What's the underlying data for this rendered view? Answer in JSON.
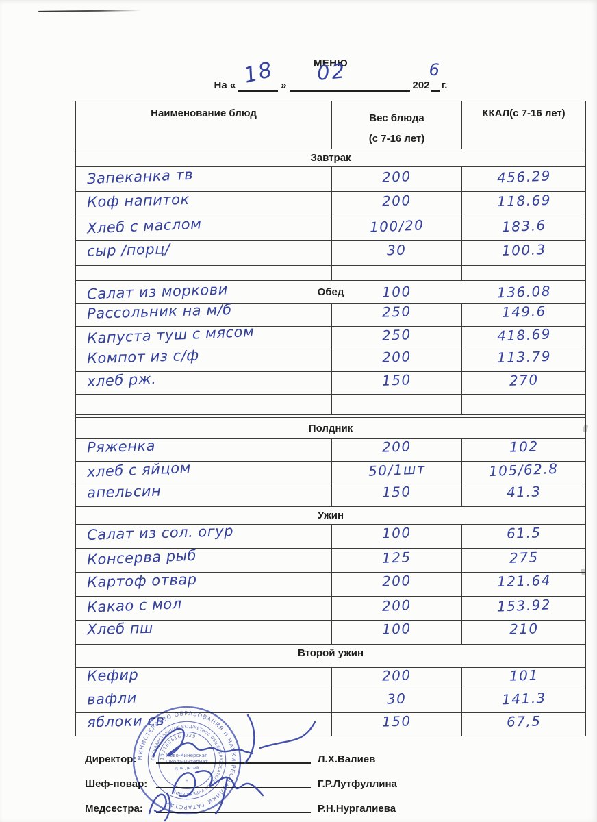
{
  "doc": {
    "title": "МЕНЮ",
    "date": {
      "prefix": "На «",
      "day": "18",
      "close_quote": "»",
      "month": "02",
      "year_prefix": "202",
      "year_digit": "6",
      "suffix": "г."
    }
  },
  "table": {
    "headers": {
      "name": "Наименование блюд",
      "weight_line1": "Вес блюда",
      "weight_line2": "(с 7-16 лет)",
      "kcal": "ККАЛ(с 7-16 лет)"
    },
    "sections": [
      {
        "label": "Завтрак",
        "rows": [
          {
            "name": "Запеканка тв",
            "weight": "200",
            "kcal": "456.29"
          },
          {
            "name": "Коф напиток",
            "weight": "200",
            "kcal": "118.69"
          },
          {
            "name": "Хлеб с маслом",
            "weight": "100/20",
            "kcal": "183.6"
          },
          {
            "name": "сыр /порц/",
            "weight": "30",
            "kcal": "100.3"
          },
          {
            "name": "",
            "weight": "",
            "kcal": ""
          }
        ]
      },
      {
        "label": "Обед",
        "rows": [
          {
            "name": "Салат из моркови",
            "weight": "100",
            "kcal": "136.08"
          },
          {
            "name": "Рассольник на м/б",
            "weight": "250",
            "kcal": "149.6"
          },
          {
            "name": "Капуста туш с мясом",
            "weight": "250",
            "kcal": "418.69"
          },
          {
            "name": "Компот из с/ф",
            "weight": "200",
            "kcal": "113.79"
          },
          {
            "name": "хлеб рж.",
            "weight": "150",
            "kcal": "270"
          },
          {
            "name": "",
            "weight": "",
            "kcal": ""
          }
        ]
      },
      {
        "label": "Полдник",
        "rows": [
          {
            "name": "Ряженка",
            "weight": "200",
            "kcal": "102"
          },
          {
            "name": "хлеб с яйцом",
            "weight": "50/1шт",
            "kcal": "105/62.8"
          },
          {
            "name": "апельсин",
            "weight": "150",
            "kcal": "41.3"
          }
        ]
      },
      {
        "label": "Ужин",
        "rows": [
          {
            "name": "Салат из сол. огур",
            "weight": "100",
            "kcal": "61.5"
          },
          {
            "name": "Консерва рыб",
            "weight": "125",
            "kcal": "275"
          },
          {
            "name": "Картоф отвар",
            "weight": "200",
            "kcal": "121.64"
          },
          {
            "name": "Какао с мол",
            "weight": "200",
            "kcal": "153.92"
          },
          {
            "name": "Хлеб пш",
            "weight": "100",
            "kcal": "210"
          }
        ]
      },
      {
        "label": "Второй ужин",
        "rows": [
          {
            "name": "Кефир",
            "weight": "200",
            "kcal": "101"
          },
          {
            "name": "вафли",
            "weight": "30",
            "kcal": "141.3"
          },
          {
            "name": "яблоки св",
            "weight": "150",
            "kcal": "67,5"
          }
        ]
      }
    ]
  },
  "footer": {
    "signatories": [
      {
        "role": "Директор:",
        "name": "Л.Х.Валиев"
      },
      {
        "role": "Шеф-повар:",
        "name": "Г.Р.Лутфуллина"
      },
      {
        "role": "Медсестра:",
        "name": "Р.Н.Нургалиева"
      }
    ]
  },
  "stamp": {
    "outer_text": "МИНИСТЕРСТВО ОБРАЗОВАНИЯ И НАУКИ РЕСПУБЛИКИ ТАТАРСТАН",
    "ring_text": "ГОСУДАРСТВЕННОЕ БЮДЖЕТНОЕ ОБЩЕОБРАЗОВАТЕЛЬНОЕ УЧРЕЖДЕНИЕ",
    "number": "1021606167029",
    "center_lines": [
      "Ново-Кинерская",
      "школа-интернат",
      "для детей"
    ]
  },
  "colors": {
    "handwriting_ink": "#35439f",
    "print_ink": "#1f1f1f",
    "stamp_blue": "#4c5ab8",
    "table_border": "#3b3b3b"
  }
}
